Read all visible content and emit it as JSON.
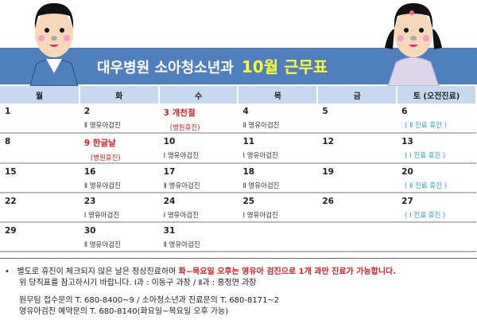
{
  "header": {
    "title": "대우병원 소아청소년과",
    "highlight": "10월 근무표"
  },
  "weekdays": [
    "월",
    "화",
    "수",
    "목",
    "금",
    "토 (오전진료)"
  ],
  "weeks": [
    [
      {
        "day": "1"
      },
      {
        "day": "2",
        "note": "Ⅱ 영유아검진"
      },
      {
        "day": "3 개천절",
        "holiday": true,
        "note": "(병원휴진)",
        "red": true
      },
      {
        "day": "4",
        "note": "Ⅱ 영유아검진"
      },
      {
        "day": "5"
      },
      {
        "day": "6",
        "note": "( Ⅱ 진료 휴진 )",
        "blue": true
      }
    ],
    [
      {
        "day": "8"
      },
      {
        "day": "9 한글날",
        "holiday": true,
        "note": "(병원휴진)",
        "red": true
      },
      {
        "day": "10",
        "note": "Ⅰ 영유아검진"
      },
      {
        "day": "11",
        "note": "Ⅰ 영유아검진"
      },
      {
        "day": "12"
      },
      {
        "day": "13",
        "note": "( Ⅰ 진료 휴진 )",
        "blue": true
      }
    ],
    [
      {
        "day": "15"
      },
      {
        "day": "16",
        "note": "Ⅱ 영유아검진"
      },
      {
        "day": "17",
        "note": "Ⅱ 영유아검진"
      },
      {
        "day": "18",
        "note": "Ⅱ 영유아검진"
      },
      {
        "day": "19"
      },
      {
        "day": "20",
        "note": "( Ⅱ 진료 휴진 )",
        "blue": true
      }
    ],
    [
      {
        "day": "22"
      },
      {
        "day": "23",
        "note": "Ⅰ 영유아검진"
      },
      {
        "day": "24",
        "note": "Ⅰ 영유아검진"
      },
      {
        "day": "25",
        "note": "Ⅰ 영유아검진"
      },
      {
        "day": "26"
      },
      {
        "day": "27",
        "note": "( Ⅰ 진료 휴진 )",
        "blue": true
      }
    ],
    [
      {
        "day": "29"
      },
      {
        "day": "30",
        "note": "Ⅱ 영유아검진"
      },
      {
        "day": "31",
        "note": "Ⅱ 영유아검진"
      },
      {},
      {},
      {}
    ]
  ],
  "footer": {
    "bullet": "•",
    "line1_normal": "별도로 휴진이 체크되지 않은 날은 정상진료하며 ",
    "line1_red": "화~목요일 오후는 영유아 검진으로 1개 과만 진료가 가능합니다.",
    "line2": "위 당직표를 참고하시기 바랍니다.   Ⅰ과 : 이동구 과장  /  Ⅱ과 : 홍정연 과장",
    "line3": "원무팀 접수문의 T. 680-8400~9    /    소아청소년과 진료문의 T. 680-8171~2",
    "line4": "영유아검진 예약문의 T. 680-8140(화요일~목요일 오후 가능)"
  },
  "colors": {
    "banner": "#4f7fbd",
    "header_row": "#c6d9f1",
    "holiday": "#d02020",
    "closed_note": "#2a9bd0",
    "highlight": "#ffff33"
  }
}
